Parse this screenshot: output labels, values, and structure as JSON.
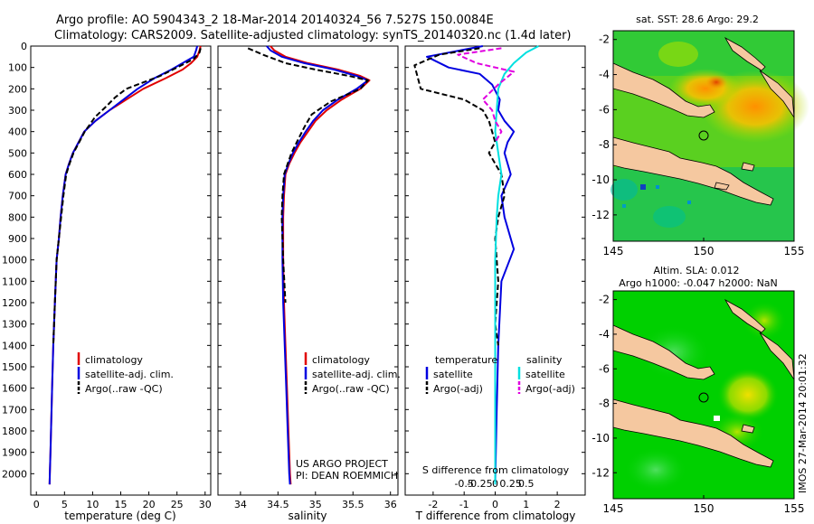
{
  "header": {
    "line1": "Argo profile: AO 5904343_2 18-Mar-2014 20140324_56 7.527S 150.0084E",
    "line2": "Climatology: CARS2009. Satellite-adjusted climatology: synTS_20140320.nc (1.4d later)"
  },
  "colors": {
    "climatology": "#e00000",
    "satellite": "#0000e0",
    "argo": "#000000",
    "sat_salinity": "#00e0e0",
    "argo_salinity": "#e000e0",
    "land": "#f5c8a0",
    "ocean": "#00d000"
  },
  "chart_data": [
    {
      "type": "line",
      "name": "temperature-profile",
      "xlabel": "temperature (deg C)",
      "ylabel": "depth",
      "xlim": [
        -1,
        31
      ],
      "ylim": [
        2100,
        0
      ],
      "xticks": [
        "0",
        "5",
        "10",
        "15",
        "20",
        "25",
        "30"
      ],
      "xtick_values": [
        0,
        5,
        10,
        15,
        20,
        25,
        30
      ],
      "yticks": [
        "0",
        "100",
        "200",
        "300",
        "400",
        "500",
        "600",
        "700",
        "800",
        "900",
        "1000",
        "1100",
        "1200",
        "1300",
        "1400",
        "1500",
        "1600",
        "1700",
        "1800",
        "1900",
        "2000"
      ],
      "ytick_values": [
        0,
        100,
        200,
        300,
        400,
        500,
        600,
        700,
        800,
        900,
        1000,
        1100,
        1200,
        1300,
        1400,
        1500,
        1600,
        1700,
        1800,
        1900,
        2000
      ],
      "legend": [
        "climatology",
        "satellite-adj. clim.",
        "Argo(..raw -QC)"
      ],
      "series": [
        {
          "name": "climatology",
          "style": "solid",
          "x": [
            29.2,
            29.0,
            28.6,
            27.5,
            26.0,
            23.0,
            19.0,
            16.0,
            13.0,
            10.5,
            8.5,
            7.5,
            6.5,
            5.8,
            5.2,
            4.7,
            4.3,
            4.0,
            3.6,
            3.3,
            3.0,
            2.8,
            2.6,
            2.5,
            2.4,
            2.35
          ],
          "y": [
            0,
            20,
            50,
            80,
            110,
            150,
            200,
            250,
            300,
            350,
            400,
            450,
            500,
            550,
            600,
            700,
            800,
            900,
            1000,
            1200,
            1400,
            1600,
            1800,
            1900,
            2000,
            2050
          ]
        },
        {
          "name": "satellite-adj. clim.",
          "style": "solid",
          "x": [
            28.6,
            28.4,
            28.0,
            26.0,
            24.0,
            21.0,
            18.0,
            15.5,
            13.0,
            10.5,
            8.5,
            7.5,
            6.5,
            5.8,
            5.2,
            4.7,
            4.3,
            4.0,
            3.6,
            3.3,
            3.0,
            2.8,
            2.6,
            2.5,
            2.4,
            2.35
          ],
          "y": [
            0,
            20,
            50,
            80,
            110,
            150,
            200,
            250,
            300,
            350,
            400,
            450,
            500,
            550,
            600,
            700,
            800,
            900,
            1000,
            1200,
            1400,
            1600,
            1800,
            1900,
            2000,
            2050
          ]
        },
        {
          "name": "Argo(..raw -QC)",
          "style": "dashed",
          "x": [
            29.2,
            29.0,
            28.0,
            25.0,
            22.0,
            19.0,
            16.0,
            14.0,
            12.5,
            10.5,
            8.6,
            7.6,
            6.6,
            5.9,
            5.3,
            4.8,
            4.4,
            4.0,
            3.6,
            3.3,
            3.0
          ],
          "y": [
            10,
            30,
            60,
            100,
            140,
            170,
            200,
            240,
            280,
            330,
            400,
            450,
            500,
            550,
            600,
            700,
            800,
            900,
            1000,
            1200,
            1400
          ]
        }
      ]
    },
    {
      "type": "line",
      "name": "salinity-profile",
      "xlabel": "salinity",
      "xlim": [
        33.7,
        36.1
      ],
      "ylim": [
        2100,
        0
      ],
      "xticks": [
        "34",
        "34.5",
        "35",
        "35.5",
        "36"
      ],
      "xtick_values": [
        34,
        34.5,
        35,
        35.5,
        36
      ],
      "legend": [
        "climatology",
        "satellite-adj. clim.",
        "Argo(..raw -QC)"
      ],
      "series": [
        {
          "name": "climatology",
          "style": "solid",
          "x": [
            34.4,
            34.45,
            34.6,
            34.9,
            35.3,
            35.6,
            35.72,
            35.6,
            35.35,
            35.15,
            35.0,
            34.9,
            34.8,
            34.72,
            34.65,
            34.6,
            34.58,
            34.57,
            34.57,
            34.58,
            34.6,
            34.62,
            34.64,
            34.66,
            34.67
          ],
          "y": [
            0,
            20,
            50,
            80,
            110,
            140,
            160,
            200,
            250,
            300,
            350,
            400,
            450,
            500,
            550,
            600,
            700,
            800,
            1000,
            1200,
            1400,
            1600,
            1800,
            2000,
            2050
          ]
        },
        {
          "name": "satellite-adj. clim.",
          "style": "solid",
          "x": [
            34.35,
            34.4,
            34.55,
            34.85,
            35.25,
            35.55,
            35.7,
            35.55,
            35.3,
            35.1,
            34.97,
            34.87,
            34.78,
            34.7,
            34.64,
            34.59,
            34.57,
            34.56,
            34.56,
            34.57,
            34.59,
            34.61,
            34.63,
            34.65,
            34.66
          ],
          "y": [
            0,
            20,
            50,
            80,
            110,
            140,
            160,
            200,
            250,
            300,
            350,
            400,
            450,
            500,
            550,
            600,
            700,
            800,
            1000,
            1200,
            1400,
            1600,
            1800,
            2000,
            2050
          ]
        },
        {
          "name": "Argo(..raw -QC)",
          "style": "dashed",
          "x": [
            34.1,
            34.3,
            34.6,
            35.0,
            35.45,
            35.7,
            35.6,
            35.2,
            34.95,
            34.85,
            34.75,
            34.68,
            34.63,
            34.58,
            34.56,
            34.55,
            34.57,
            34.6
          ],
          "y": [
            10,
            40,
            80,
            110,
            140,
            160,
            200,
            260,
            320,
            380,
            450,
            500,
            550,
            600,
            700,
            800,
            1000,
            1200
          ]
        }
      ]
    },
    {
      "type": "line",
      "name": "difference-profile",
      "xlabel": "T difference from climatology",
      "top_label": "S difference from climatology",
      "xlim": [
        -2.9,
        2.9
      ],
      "ylim": [
        2100,
        0
      ],
      "xticks": [
        "-2",
        "-1",
        "0",
        "1",
        "2"
      ],
      "xtick_values": [
        -2,
        -1,
        0,
        1,
        2
      ],
      "s_ticks": [
        "-0.5",
        "-0.25",
        "0",
        "0.25",
        "0.5"
      ],
      "s_tick_values": [
        -0.5,
        -0.25,
        0,
        0.25,
        0.5
      ],
      "legend_headers": [
        "temperature",
        "salinity"
      ],
      "legend": [
        "satellite",
        "Argo(-adj)",
        "satellite",
        "Argo(-adj)"
      ],
      "series": [
        {
          "name": "temperature satellite",
          "style": "solid",
          "x": [
            -0.4,
            -2.2,
            -1.5,
            -0.5,
            -0.1,
            0.15,
            0.1,
            0.3,
            0.6,
            0.4,
            0.3,
            0.5,
            0.2,
            0.3,
            0.6,
            0.2,
            0.1,
            0.05,
            0.0
          ],
          "y": [
            0,
            50,
            100,
            130,
            180,
            250,
            300,
            350,
            400,
            450,
            500,
            600,
            700,
            800,
            950,
            1100,
            1400,
            1700,
            2050
          ]
        },
        {
          "name": "temperature Argo(-adj)",
          "style": "dashed",
          "x": [
            -0.5,
            -1.8,
            -2.6,
            -2.4,
            -1.0,
            -0.4,
            -0.2,
            -0.1,
            0.0,
            -0.2,
            0.2,
            0.3,
            0.1,
            0.0,
            0.1,
            0.0,
            0.1
          ],
          "y": [
            10,
            40,
            90,
            200,
            250,
            300,
            350,
            400,
            450,
            500,
            600,
            700,
            800,
            900,
            1100,
            1300,
            1400
          ]
        },
        {
          "name": "salinity satellite",
          "style": "solid",
          "x": [
            1.4,
            1.0,
            0.6,
            0.3,
            0.1,
            0.05,
            0.0,
            0.1,
            0.2,
            0.1,
            0.05,
            0.0,
            0.0,
            0.0
          ],
          "y": [
            0,
            30,
            80,
            130,
            200,
            300,
            400,
            500,
            600,
            700,
            800,
            1000,
            1400,
            2050
          ]
        },
        {
          "name": "salinity Argo(-adj)",
          "style": "dashed",
          "x": [
            0.2,
            -1.2,
            -0.6,
            0.6,
            0.1,
            -0.4,
            -0.1,
            0.0,
            0.2,
            0.0
          ],
          "y": [
            10,
            40,
            80,
            120,
            180,
            250,
            300,
            350,
            400,
            450
          ]
        }
      ]
    },
    {
      "type": "heatmap",
      "name": "sst-map",
      "title": "sat. SST: 28.6 Argo: 29.2",
      "xlim": [
        145,
        155
      ],
      "ylim": [
        -13.5,
        -1.5
      ],
      "xticks": [
        "145",
        "150",
        "155"
      ],
      "xtick_values": [
        145,
        150,
        155
      ],
      "yticks": [
        "-2",
        "-4",
        "-6",
        "-8",
        "-10",
        "-12"
      ],
      "ytick_values": [
        -2,
        -4,
        -6,
        -8,
        -10,
        -12
      ],
      "argo_position": [
        150.0084,
        -7.527
      ]
    },
    {
      "type": "heatmap",
      "name": "sla-map",
      "title1": "Altim. SLA: 0.012",
      "title2": "Argo h1000: -0.047 h2000: NaN",
      "xlim": [
        145,
        155
      ],
      "ylim": [
        -13.5,
        -1.5
      ],
      "xticks": [
        "145",
        "150",
        "155"
      ],
      "xtick_values": [
        145,
        150,
        155
      ],
      "yticks": [
        "-2",
        "-4",
        "-6",
        "-8",
        "-10",
        "-12"
      ],
      "ytick_values": [
        -2,
        -4,
        -6,
        -8,
        -10,
        -12
      ],
      "argo_position": [
        150.0084,
        -7.527
      ]
    }
  ],
  "annotations": {
    "project_line1": "US ARGO PROJECT",
    "project_line2": "PI: DEAN ROEMMICH",
    "watermark": "IMOS 27-Mar-2014 20:01:32"
  }
}
